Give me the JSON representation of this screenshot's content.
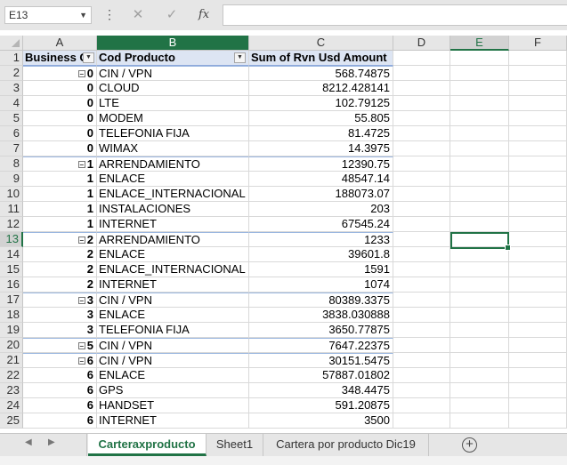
{
  "formula_bar": {
    "name_box": "E13",
    "cancel_glyph": "✕",
    "enter_glyph": "✓",
    "fx_label": "fx",
    "formula": ""
  },
  "columns": [
    "A",
    "B",
    "C",
    "D",
    "E",
    "F"
  ],
  "pivot_header": {
    "col_a": "Business G",
    "col_b": "Cod Producto",
    "col_c": "Sum of Rvn Usd Amount"
  },
  "rows": [
    {
      "n": "2",
      "a": "0",
      "b": "CIN / VPN",
      "c": "568.74875",
      "group": true
    },
    {
      "n": "3",
      "a": "0",
      "b": "CLOUD",
      "c": "8212.428141",
      "group": false
    },
    {
      "n": "4",
      "a": "0",
      "b": "LTE",
      "c": "102.79125",
      "group": false
    },
    {
      "n": "5",
      "a": "0",
      "b": "MODEM",
      "c": "55.805",
      "group": false
    },
    {
      "n": "6",
      "a": "0",
      "b": "TELEFONIA FIJA",
      "c": "81.4725",
      "group": false
    },
    {
      "n": "7",
      "a": "0",
      "b": "WIMAX",
      "c": "14.3975",
      "group": false
    },
    {
      "n": "8",
      "a": "1",
      "b": "ARRENDAMIENTO",
      "c": "12390.75",
      "group": true
    },
    {
      "n": "9",
      "a": "1",
      "b": "ENLACE",
      "c": "48547.14",
      "group": false
    },
    {
      "n": "10",
      "a": "1",
      "b": "ENLACE_INTERNACIONAL",
      "c": "188073.07",
      "group": false
    },
    {
      "n": "11",
      "a": "1",
      "b": "INSTALACIONES",
      "c": "203",
      "group": false
    },
    {
      "n": "12",
      "a": "1",
      "b": "INTERNET",
      "c": "67545.24",
      "group": false
    },
    {
      "n": "13",
      "a": "2",
      "b": "ARRENDAMIENTO",
      "c": "1233",
      "group": true
    },
    {
      "n": "14",
      "a": "2",
      "b": "ENLACE",
      "c": "39601.8",
      "group": false
    },
    {
      "n": "15",
      "a": "2",
      "b": "ENLACE_INTERNACIONAL",
      "c": "1591",
      "group": false
    },
    {
      "n": "16",
      "a": "2",
      "b": "INTERNET",
      "c": "1074",
      "group": false
    },
    {
      "n": "17",
      "a": "3",
      "b": "CIN / VPN",
      "c": "80389.3375",
      "group": true
    },
    {
      "n": "18",
      "a": "3",
      "b": "ENLACE",
      "c": "3838.030888",
      "group": false
    },
    {
      "n": "19",
      "a": "3",
      "b": "TELEFONIA FIJA",
      "c": "3650.77875",
      "group": false
    },
    {
      "n": "20",
      "a": "5",
      "b": "CIN / VPN",
      "c": "7647.22375",
      "group": true
    },
    {
      "n": "21",
      "a": "6",
      "b": "CIN / VPN",
      "c": "30151.5475",
      "group": true
    },
    {
      "n": "22",
      "a": "6",
      "b": "ENLACE",
      "c": "57887.01802",
      "group": false
    },
    {
      "n": "23",
      "a": "6",
      "b": "GPS",
      "c": "348.4475",
      "group": false
    },
    {
      "n": "24",
      "a": "6",
      "b": "HANDSET",
      "c": "591.20875",
      "group": false
    },
    {
      "n": "25",
      "a": "6",
      "b": "INTERNET",
      "c": "3500",
      "group": false
    }
  ],
  "header_row_number": "1",
  "active_row": "13",
  "active_col": "E",
  "sheet_tabs": [
    {
      "label": "Carteraxproducto",
      "active": true
    },
    {
      "label": "Sheet1",
      "active": false
    },
    {
      "label": "Cartera por producto Dic19",
      "active": false
    }
  ],
  "add_sheet_glyph": "+",
  "accent_color": "#217346",
  "pivot_header_fill": "#dde5f3"
}
